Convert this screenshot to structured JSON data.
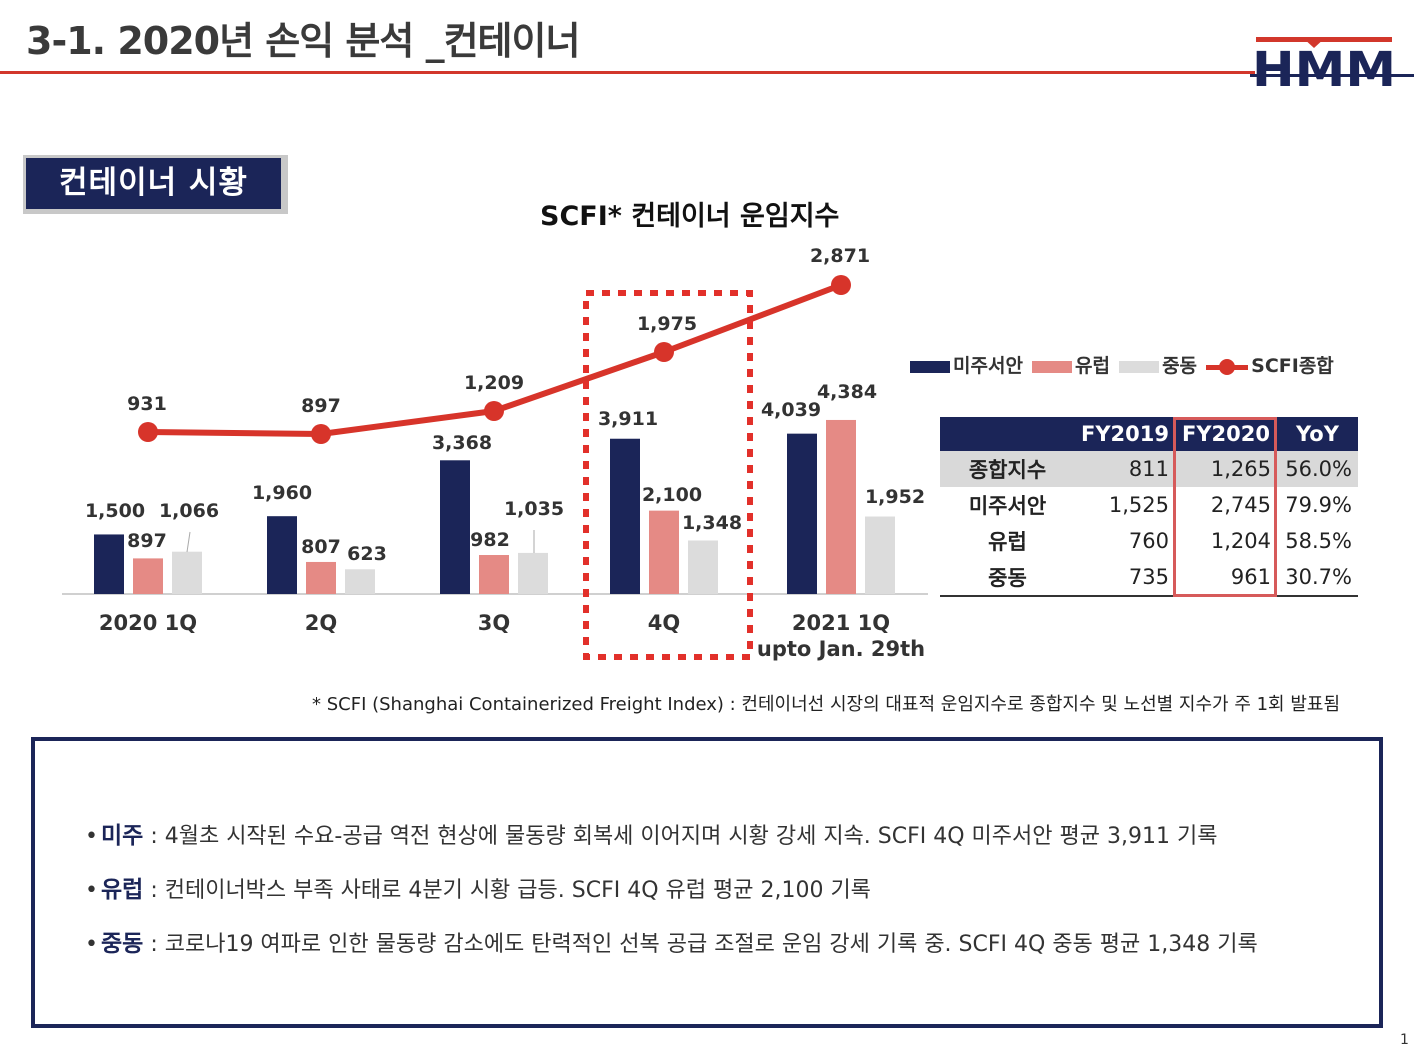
{
  "header": {
    "title": "3-1. 2020년 손익 분석 _컨테이너",
    "logo_text": "HMM"
  },
  "section": {
    "badge": "컨테이너 시황"
  },
  "chart_data": {
    "type": "bar",
    "title": "SCFI* 컨테이너 운임지수",
    "categories": [
      "2020 1Q",
      "2Q",
      "3Q",
      "4Q",
      "2021 1Q"
    ],
    "category_sublabels": [
      "",
      "",
      "",
      "",
      "upto Jan. 29th"
    ],
    "series": [
      {
        "name": "미주서안",
        "values": [
          1500,
          1960,
          3368,
          3911,
          4039
        ],
        "color": "#1b2558"
      },
      {
        "name": "유럽",
        "values": [
          897,
          807,
          982,
          2100,
          4384
        ],
        "color": "#e58a85"
      },
      {
        "name": "중동",
        "values": [
          1066,
          623,
          1035,
          1348,
          1952
        ],
        "color": "#dcdcdc"
      }
    ],
    "line_series": {
      "name": "SCFI종합",
      "values": [
        931,
        897,
        1209,
        1975,
        2871
      ],
      "color": "#d7342a"
    },
    "highlight_category": "4Q",
    "legend_position": "right"
  },
  "table": {
    "headers": [
      "",
      "FY2019",
      "FY2020",
      "YoY"
    ],
    "rows": [
      {
        "label": "종합지수",
        "fy2019": "811",
        "fy2020": "1,265",
        "yoy": "56.0%"
      },
      {
        "label": "미주서안",
        "fy2019": "1,525",
        "fy2020": "2,745",
        "yoy": "79.9%"
      },
      {
        "label": "유럽",
        "fy2019": "760",
        "fy2020": "1,204",
        "yoy": "58.5%"
      },
      {
        "label": "중동",
        "fy2019": "735",
        "fy2020": "961",
        "yoy": "30.7%"
      }
    ]
  },
  "footnote": "* SCFI (Shanghai Containerized Freight Index) : 컨테이너선 시장의 대표적 운임지수로 종합지수 및 노선별 지수가 주 1회 발표됨",
  "summary": {
    "bullets": [
      {
        "key": "미주",
        "text": " : 4월초 시작된 수요-공급 역전 현상에 물동량 회복세 이어지며 시황 강세 지속. SCFI 4Q 미주서안 평균 3,911 기록"
      },
      {
        "key": "유럽",
        "text": " : 컨테이너박스 부족 사태로 4분기 시황 급등. SCFI 4Q 유럽 평균 2,100 기록"
      },
      {
        "key": "중동",
        "text": " : 코로나19 여파로 인한 물동량 감소에도 탄력적인 선복 공급 조절로 운임 강세 기록 중. SCFI 4Q 중동 평균 1,348 기록"
      }
    ]
  },
  "page_number": "1"
}
